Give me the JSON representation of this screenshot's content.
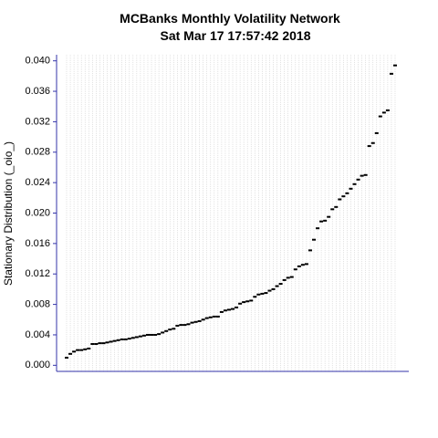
{
  "chart_data": {
    "type": "dot",
    "title": "MCBanks  Monthly Volatility Network",
    "subtitle": "Sat Mar 17 17:57:42 2018",
    "y_label": "Stationary Distribution (_oio_)",
    "color": "#000000",
    "axis_color": "#3333aa",
    "grid": true,
    "ylim": [
      -0.0008,
      0.0408
    ],
    "yticks": [
      {
        "value": 0,
        "label": "0.000"
      },
      {
        "value": 0.004,
        "label": "0.004"
      },
      {
        "value": 0.008,
        "label": "0.008"
      },
      {
        "value": 0.012,
        "label": "0.012"
      },
      {
        "value": 0.016,
        "label": "0.016"
      },
      {
        "value": 0.02,
        "label": "0.020"
      },
      {
        "value": 0.024,
        "label": "0.024"
      },
      {
        "value": 0.028,
        "label": "0.028"
      },
      {
        "value": 0.032,
        "label": "0.032"
      },
      {
        "value": 0.036,
        "label": "0.036"
      },
      {
        "value": 0.04,
        "label": "0.040"
      }
    ],
    "values": [
      0.001,
      0.0015,
      0.0018,
      0.002,
      0.002,
      0.0021,
      0.0022,
      0.0028,
      0.0028,
      0.0029,
      0.0029,
      0.003,
      0.0031,
      0.0032,
      0.0033,
      0.0034,
      0.0034,
      0.0035,
      0.0036,
      0.0037,
      0.0038,
      0.0039,
      0.004,
      0.004,
      0.004,
      0.0041,
      0.0043,
      0.0045,
      0.0047,
      0.0048,
      0.0052,
      0.0053,
      0.0053,
      0.0054,
      0.0056,
      0.0057,
      0.0058,
      0.006,
      0.0062,
      0.0063,
      0.0064,
      0.0064,
      0.007,
      0.0072,
      0.0073,
      0.0074,
      0.0076,
      0.0081,
      0.0083,
      0.0084,
      0.0085,
      0.009,
      0.0093,
      0.0094,
      0.0095,
      0.0098,
      0.01,
      0.0104,
      0.0107,
      0.0112,
      0.0115,
      0.0116,
      0.0126,
      0.013,
      0.0132,
      0.0133,
      0.0151,
      0.0165,
      0.018,
      0.0189,
      0.019,
      0.0195,
      0.0205,
      0.0208,
      0.0218,
      0.0222,
      0.0226,
      0.0232,
      0.0238,
      0.0244,
      0.0249,
      0.025,
      0.0288,
      0.0292,
      0.0305,
      0.0327,
      0.0332,
      0.0335,
      0.0383,
      0.0394
    ]
  }
}
